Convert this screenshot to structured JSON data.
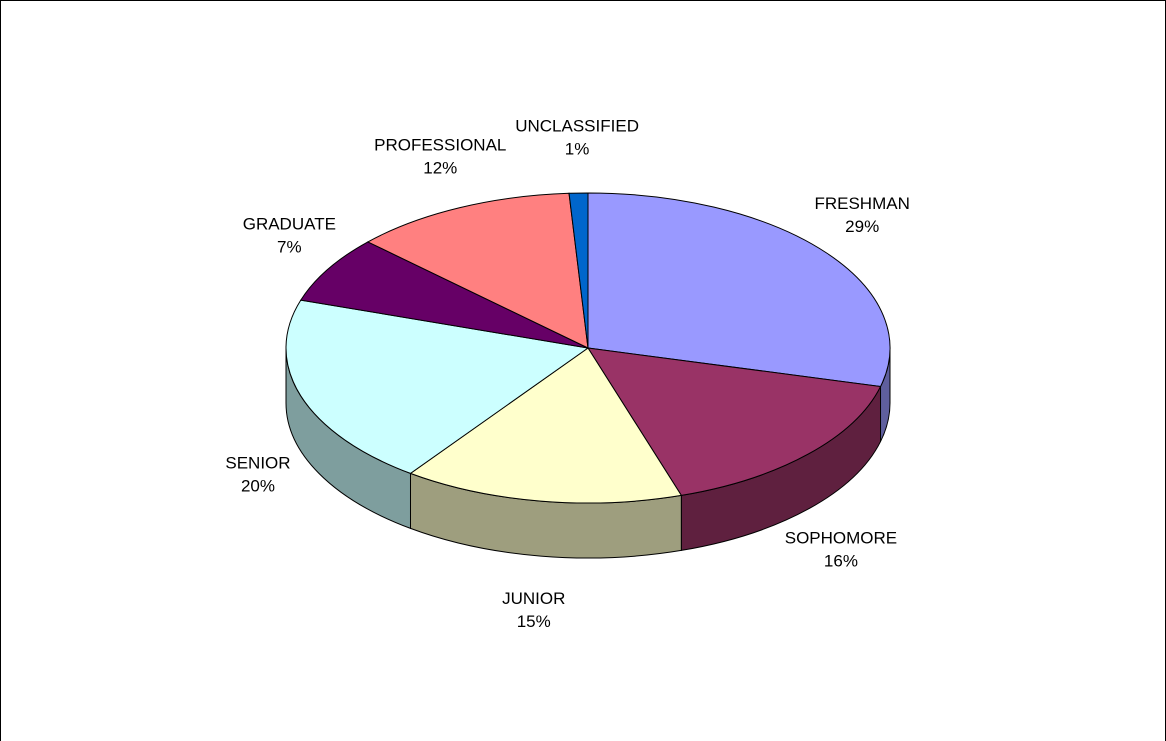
{
  "chart_data": {
    "type": "pie3d",
    "categories": [
      "FRESHMAN",
      "SOPHOMORE",
      "JUNIOR",
      "SENIOR",
      "GRADUATE",
      "PROFESSIONAL",
      "UNCLASSIFIED"
    ],
    "values": [
      29,
      16,
      15,
      20,
      7,
      12,
      1
    ],
    "value_labels": [
      "29%",
      "16%",
      "15%",
      "20%",
      "7%",
      "12%",
      "1%"
    ],
    "colors": [
      "#9999ff",
      "#993366",
      "#ffffcc",
      "#ccffff",
      "#660066",
      "#ff8080",
      "#0066cc"
    ]
  }
}
